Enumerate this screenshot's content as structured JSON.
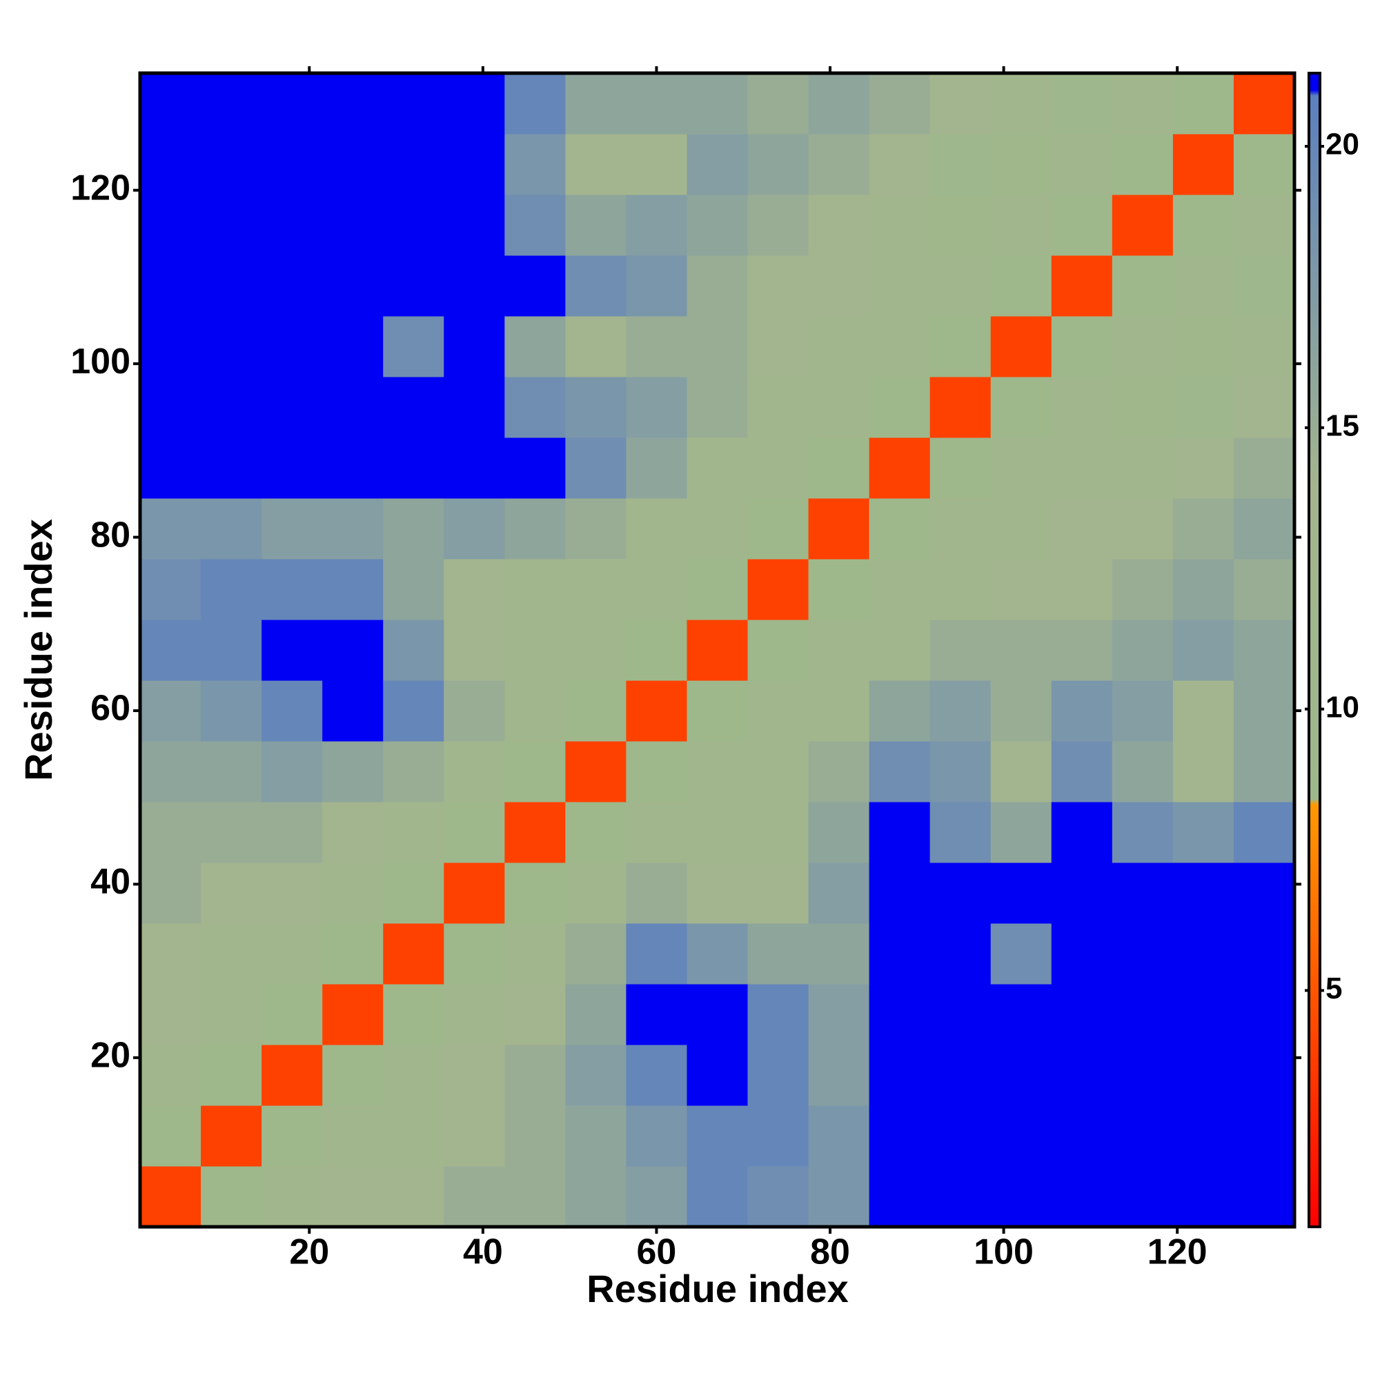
{
  "chart_data": {
    "type": "heatmap",
    "x_label": "Residue index",
    "y_label": "Residue index",
    "x": [
      4,
      11,
      18,
      25,
      32,
      39,
      46,
      53,
      60,
      67,
      74,
      81,
      88,
      95,
      102,
      109,
      116,
      123,
      130
    ],
    "y": [
      4,
      11,
      18,
      25,
      32,
      39,
      46,
      53,
      60,
      67,
      74,
      81,
      88,
      95,
      102,
      109,
      116,
      123,
      130
    ],
    "z": [
      [
        4,
        9,
        12,
        14,
        14,
        15,
        15,
        16,
        17,
        20,
        19,
        18,
        22,
        22,
        22,
        22,
        22,
        22,
        22
      ],
      [
        9,
        4,
        9,
        12,
        13,
        14,
        15,
        16,
        18,
        20,
        20,
        18,
        22,
        22,
        22,
        22,
        22,
        22,
        22
      ],
      [
        12,
        9,
        4,
        9,
        12,
        14,
        15,
        17,
        20,
        21,
        20,
        17,
        22,
        22,
        21,
        22,
        22,
        22,
        22
      ],
      [
        14,
        12,
        9,
        4,
        9,
        12,
        14,
        16,
        22,
        22,
        20,
        17,
        22,
        22,
        22,
        22,
        22,
        22,
        22
      ],
      [
        14,
        13,
        12,
        9,
        4,
        9,
        12,
        15,
        20,
        18,
        16,
        16,
        21,
        22,
        19,
        22,
        22,
        22,
        22
      ],
      [
        15,
        14,
        14,
        12,
        9,
        4,
        9,
        12,
        15,
        14,
        14,
        17,
        22,
        22,
        21,
        22,
        22,
        22,
        22
      ],
      [
        15,
        15,
        15,
        14,
        12,
        9,
        4,
        9,
        12,
        13,
        12,
        16,
        21,
        19,
        16,
        21,
        19,
        18,
        20
      ],
      [
        16,
        16,
        17,
        16,
        15,
        12,
        9,
        4,
        9,
        12,
        12,
        15,
        19,
        18,
        14,
        19,
        16,
        14,
        16
      ],
      [
        17,
        18,
        20,
        22,
        20,
        15,
        12,
        9,
        4,
        9,
        12,
        13,
        16,
        17,
        15,
        18,
        17,
        14,
        16
      ],
      [
        20,
        20,
        21,
        22,
        18,
        14,
        13,
        12,
        9,
        4,
        9,
        12,
        13,
        15,
        15,
        15,
        16,
        17,
        16
      ],
      [
        19,
        20,
        20,
        20,
        16,
        14,
        12,
        12,
        12,
        9,
        4,
        9,
        12,
        13,
        14,
        14,
        15,
        16,
        15
      ],
      [
        18,
        18,
        17,
        17,
        16,
        17,
        16,
        15,
        13,
        12,
        9,
        4,
        9,
        12,
        13,
        14,
        14,
        15,
        16
      ],
      [
        22,
        22,
        22,
        22,
        21,
        22,
        21,
        19,
        16,
        13,
        12,
        9,
        4,
        9,
        12,
        12,
        13,
        14,
        15
      ],
      [
        22,
        22,
        22,
        22,
        22,
        22,
        19,
        18,
        17,
        15,
        13,
        12,
        9,
        4,
        9,
        12,
        11,
        10,
        14
      ],
      [
        22,
        22,
        21,
        22,
        19,
        21,
        16,
        14,
        15,
        15,
        14,
        13,
        12,
        9,
        4,
        9,
        12,
        11,
        12
      ],
      [
        22,
        22,
        22,
        22,
        22,
        22,
        21,
        19,
        18,
        15,
        14,
        14,
        12,
        12,
        9,
        4,
        9,
        12,
        10
      ],
      [
        22,
        22,
        22,
        22,
        22,
        22,
        19,
        16,
        17,
        16,
        15,
        14,
        13,
        11,
        12,
        9,
        4,
        9,
        12
      ],
      [
        22,
        22,
        22,
        22,
        22,
        22,
        18,
        14,
        14,
        17,
        16,
        15,
        14,
        10,
        11,
        12,
        9,
        4,
        9
      ],
      [
        22,
        22,
        22,
        22,
        22,
        22,
        20,
        16,
        16,
        16,
        15,
        16,
        15,
        14,
        12,
        10,
        12,
        9,
        4
      ]
    ],
    "xlim": [
      0.5,
      133.5
    ],
    "ylim": [
      0.5,
      133.5
    ],
    "xticks": [
      20,
      40,
      60,
      80,
      100,
      120
    ],
    "yticks": [
      20,
      40,
      60,
      80,
      100,
      120
    ],
    "zlim": [
      0.8,
      21.3
    ],
    "zticks": [
      5,
      10,
      15,
      20
    ],
    "colorscale": [
      [
        0.8,
        "#ff0000"
      ],
      [
        8.3,
        "#ff9900"
      ],
      [
        8.4,
        "#9db88b"
      ],
      [
        14,
        "#a3b58e"
      ],
      [
        20.9,
        "#5c7fbf"
      ],
      [
        21.0,
        "#0000f5"
      ],
      [
        21.3,
        "#0000f5"
      ]
    ]
  }
}
